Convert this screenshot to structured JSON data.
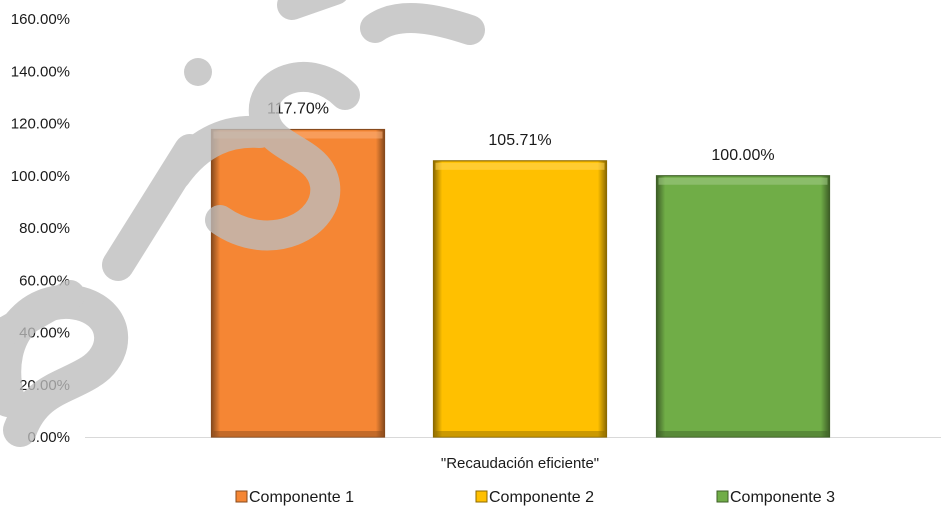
{
  "chart_data": {
    "type": "bar",
    "title": "",
    "xlabel": "",
    "ylabel": "",
    "categories": [
      "\"Recaudación eficiente\""
    ],
    "series": [
      {
        "name": "Componente 1",
        "values": [
          1.177
        ],
        "label": "117.70%",
        "color": "#f58634"
      },
      {
        "name": "Componente 2",
        "values": [
          1.0571
        ],
        "label": "105.71%",
        "color": "#ffc000"
      },
      {
        "name": "Componente 3",
        "values": [
          1.0
        ],
        "label": "100.00%",
        "color": "#70ad47"
      }
    ],
    "ylim": [
      0,
      1.6
    ],
    "y_ticks": [
      {
        "value": 0,
        "label": "0.00%"
      },
      {
        "value": 0.2,
        "label": "20.00%"
      },
      {
        "value": 0.4,
        "label": "40.00%"
      },
      {
        "value": 0.6,
        "label": "60.00%"
      },
      {
        "value": 0.8,
        "label": "80.00%"
      },
      {
        "value": 1.0,
        "label": "100.00%"
      },
      {
        "value": 1.2,
        "label": "120.00%"
      },
      {
        "value": 1.4,
        "label": "140.00%"
      },
      {
        "value": 1.6,
        "label": "160.00%"
      }
    ],
    "grid": false,
    "legend": "bottom",
    "bar_style": "bevel"
  }
}
